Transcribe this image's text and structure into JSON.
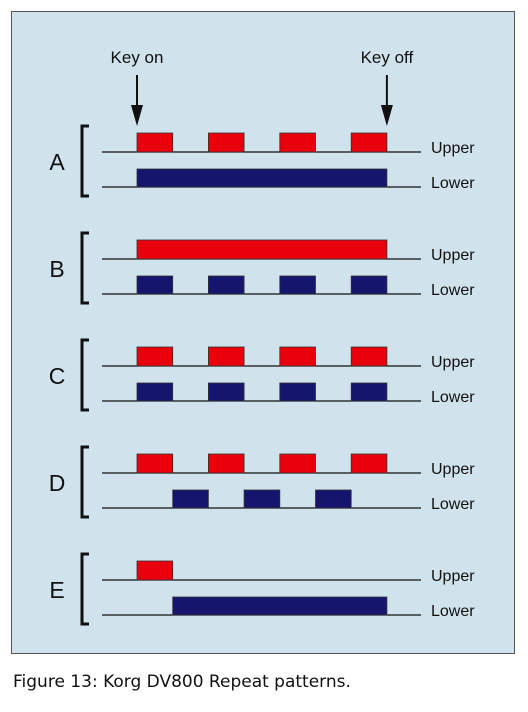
{
  "labels": {
    "key_on": "Key on",
    "key_off": "Key off",
    "upper": "Upper",
    "lower": "Lower"
  },
  "colors": {
    "panel_background": "#d0e2ec",
    "upper_block": "#e8000c",
    "lower_block": "#15156e",
    "line": "#111111"
  },
  "timing": {
    "key_on": 0,
    "key_off": 7,
    "unit_note_length": 1
  },
  "patterns": [
    {
      "id": "A",
      "upper_blocks": [
        [
          0,
          1
        ],
        [
          2,
          3
        ],
        [
          4,
          5
        ],
        [
          6,
          7
        ]
      ],
      "lower_blocks": [
        [
          0,
          7
        ]
      ]
    },
    {
      "id": "B",
      "upper_blocks": [
        [
          0,
          7
        ]
      ],
      "lower_blocks": [
        [
          0,
          1
        ],
        [
          2,
          3
        ],
        [
          4,
          5
        ],
        [
          6,
          7
        ]
      ]
    },
    {
      "id": "C",
      "upper_blocks": [
        [
          0,
          1
        ],
        [
          2,
          3
        ],
        [
          4,
          5
        ],
        [
          6,
          7
        ]
      ],
      "lower_blocks": [
        [
          0,
          1
        ],
        [
          2,
          3
        ],
        [
          4,
          5
        ],
        [
          6,
          7
        ]
      ]
    },
    {
      "id": "D",
      "upper_blocks": [
        [
          0,
          1
        ],
        [
          2,
          3
        ],
        [
          4,
          5
        ],
        [
          6,
          7
        ]
      ],
      "lower_blocks": [
        [
          1,
          2
        ],
        [
          3,
          4
        ],
        [
          5,
          6
        ]
      ]
    },
    {
      "id": "E",
      "upper_blocks": [
        [
          0,
          1
        ]
      ],
      "lower_blocks": [
        [
          1,
          7
        ]
      ]
    }
  ],
  "caption": "Figure 13: Korg DV800 Repeat patterns."
}
